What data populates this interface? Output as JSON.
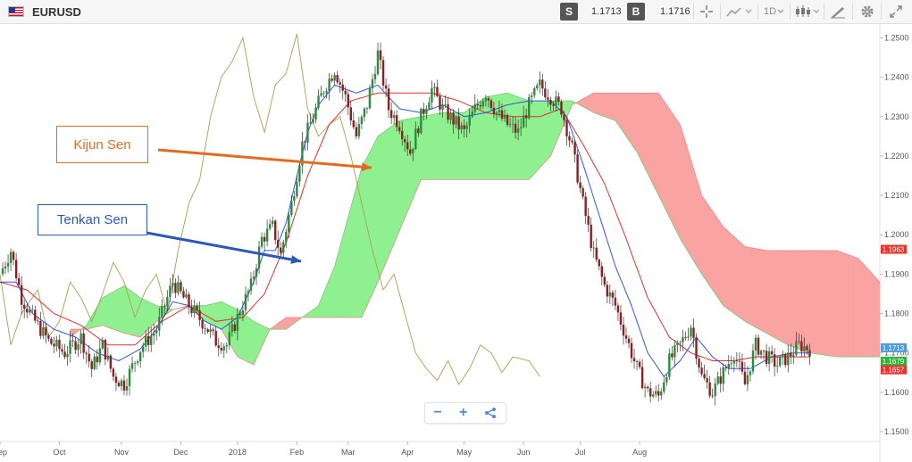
{
  "toolbar": {
    "symbol": "EURUSD",
    "sell_label": "S",
    "sell_price": "1.1713",
    "buy_label": "B",
    "buy_price": "1.1716",
    "timeframe": "1D",
    "icons": [
      "crosshair-icon",
      "chart-type-icon",
      "candles-icon",
      "draw-icon",
      "gear-icon",
      "expand-icon"
    ]
  },
  "zoom": {
    "minus": "−",
    "plus": "+",
    "share_icon": "share-icon"
  },
  "annotations": {
    "kijun_label": "Kijun Sen",
    "tenkan_label": "Tenkan Sen"
  },
  "colors": {
    "kijun": "#e06d1f",
    "tenkan": "#2b59b5",
    "cloud_bull": "#8ff08f",
    "cloud_bear": "#f9a3a3",
    "candle_up": "#2e8b3e",
    "candle_down": "#8c1f1f",
    "chikou": "#a9a050",
    "kijun_line": "#e0302a",
    "tenkan_line": "#3355dd"
  },
  "chart_data": {
    "type": "candlestick-ichimoku",
    "x_ticks": [
      "Sep",
      "Oct",
      "Nov",
      "Dec",
      "2018",
      "Feb",
      "Mar",
      "Apr",
      "May",
      "Jun",
      "Jul",
      "Aug"
    ],
    "y_ticks": [
      "1.2500",
      "1.2400",
      "1.2300",
      "1.2200",
      "1.2100",
      "1.2000",
      "1.1900",
      "1.1800",
      "1.1700",
      "1.1600",
      "1.1500"
    ],
    "ylim": [
      1.1475,
      1.2535
    ],
    "price_tags": [
      {
        "value": 1.1963,
        "text": "1.1963",
        "color": "#e8322a"
      },
      {
        "value": 1.1713,
        "text": "1.1713",
        "color": "#4f9ad8"
      },
      {
        "value": 1.1679,
        "text": "1.1679",
        "color": "#2fb33a"
      },
      {
        "value": 1.1657,
        "text": "1.1657",
        "color": "#e8322a"
      }
    ],
    "close_anchors": [
      [
        0,
        1.19
      ],
      [
        4,
        1.196
      ],
      [
        8,
        1.184
      ],
      [
        12,
        1.179
      ],
      [
        18,
        1.173
      ],
      [
        24,
        1.17
      ],
      [
        30,
        1.174
      ],
      [
        34,
        1.166
      ],
      [
        38,
        1.172
      ],
      [
        42,
        1.164
      ],
      [
        46,
        1.162
      ],
      [
        52,
        1.171
      ],
      [
        58,
        1.176
      ],
      [
        64,
        1.188
      ],
      [
        70,
        1.182
      ],
      [
        76,
        1.177
      ],
      [
        80,
        1.173
      ],
      [
        84,
        1.172
      ],
      [
        88,
        1.179
      ],
      [
        93,
        1.187
      ],
      [
        97,
        1.199
      ],
      [
        101,
        1.202
      ],
      [
        104,
        1.195
      ],
      [
        108,
        1.208
      ],
      [
        112,
        1.223
      ],
      [
        116,
        1.23
      ],
      [
        120,
        1.237
      ],
      [
        124,
        1.242
      ],
      [
        128,
        1.235
      ],
      [
        132,
        1.225
      ],
      [
        136,
        1.233
      ],
      [
        140,
        1.246
      ],
      [
        144,
        1.232
      ],
      [
        148,
        1.228
      ],
      [
        152,
        1.221
      ],
      [
        156,
        1.23
      ],
      [
        160,
        1.237
      ],
      [
        164,
        1.232
      ],
      [
        168,
        1.229
      ],
      [
        172,
        1.226
      ],
      [
        176,
        1.232
      ],
      [
        180,
        1.236
      ],
      [
        184,
        1.231
      ],
      [
        188,
        1.228
      ],
      [
        192,
        1.226
      ],
      [
        196,
        1.233
      ],
      [
        200,
        1.238
      ],
      [
        204,
        1.235
      ],
      [
        208,
        1.232
      ],
      [
        212,
        1.222
      ],
      [
        216,
        1.208
      ],
      [
        220,
        1.195
      ],
      [
        224,
        1.187
      ],
      [
        228,
        1.182
      ],
      [
        232,
        1.174
      ],
      [
        236,
        1.166
      ],
      [
        240,
        1.16
      ],
      [
        244,
        1.159
      ],
      [
        248,
        1.168
      ],
      [
        252,
        1.172
      ],
      [
        256,
        1.177
      ],
      [
        260,
        1.164
      ],
      [
        264,
        1.16
      ],
      [
        268,
        1.165
      ],
      [
        272,
        1.17
      ],
      [
        276,
        1.162
      ],
      [
        280,
        1.172
      ],
      [
        284,
        1.169
      ],
      [
        288,
        1.167
      ],
      [
        292,
        1.169
      ],
      [
        296,
        1.172
      ],
      [
        300,
        1.171
      ]
    ],
    "tenkan_anchors": [
      [
        0,
        1.188
      ],
      [
        6,
        1.188
      ],
      [
        12,
        1.18
      ],
      [
        20,
        1.176
      ],
      [
        28,
        1.174
      ],
      [
        36,
        1.17
      ],
      [
        44,
        1.168
      ],
      [
        52,
        1.171
      ],
      [
        58,
        1.176
      ],
      [
        64,
        1.183
      ],
      [
        70,
        1.182
      ],
      [
        76,
        1.178
      ],
      [
        82,
        1.176
      ],
      [
        88,
        1.179
      ],
      [
        94,
        1.188
      ],
      [
        98,
        1.196
      ],
      [
        102,
        1.196
      ],
      [
        106,
        1.203
      ],
      [
        110,
        1.215
      ],
      [
        114,
        1.226
      ],
      [
        118,
        1.233
      ],
      [
        124,
        1.238
      ],
      [
        132,
        1.236
      ],
      [
        140,
        1.238
      ],
      [
        148,
        1.232
      ],
      [
        156,
        1.231
      ],
      [
        164,
        1.233
      ],
      [
        172,
        1.23
      ],
      [
        180,
        1.231
      ],
      [
        188,
        1.233
      ],
      [
        196,
        1.234
      ],
      [
        204,
        1.234
      ],
      [
        210,
        1.23
      ],
      [
        216,
        1.218
      ],
      [
        222,
        1.205
      ],
      [
        228,
        1.192
      ],
      [
        234,
        1.182
      ],
      [
        240,
        1.17
      ],
      [
        246,
        1.164
      ],
      [
        252,
        1.168
      ],
      [
        258,
        1.174
      ],
      [
        264,
        1.169
      ],
      [
        270,
        1.166
      ],
      [
        278,
        1.166
      ],
      [
        286,
        1.169
      ],
      [
        294,
        1.17
      ],
      [
        300,
        1.17
      ]
    ],
    "kijun_anchors": [
      [
        0,
        1.188
      ],
      [
        10,
        1.186
      ],
      [
        20,
        1.18
      ],
      [
        30,
        1.177
      ],
      [
        40,
        1.172
      ],
      [
        50,
        1.172
      ],
      [
        60,
        1.178
      ],
      [
        70,
        1.182
      ],
      [
        80,
        1.178
      ],
      [
        90,
        1.179
      ],
      [
        98,
        1.185
      ],
      [
        106,
        1.198
      ],
      [
        114,
        1.215
      ],
      [
        122,
        1.228
      ],
      [
        130,
        1.234
      ],
      [
        140,
        1.236
      ],
      [
        150,
        1.236
      ],
      [
        160,
        1.236
      ],
      [
        170,
        1.234
      ],
      [
        180,
        1.231
      ],
      [
        190,
        1.23
      ],
      [
        200,
        1.23
      ],
      [
        208,
        1.232
      ],
      [
        216,
        1.223
      ],
      [
        224,
        1.213
      ],
      [
        232,
        1.199
      ],
      [
        240,
        1.184
      ],
      [
        248,
        1.174
      ],
      [
        256,
        1.17
      ],
      [
        264,
        1.168
      ],
      [
        272,
        1.168
      ],
      [
        280,
        1.169
      ],
      [
        290,
        1.169
      ],
      [
        300,
        1.169
      ]
    ],
    "cloud_span_a": [
      [
        26,
        1.174
      ],
      [
        32,
        1.177
      ],
      [
        38,
        1.184
      ],
      [
        46,
        1.187
      ],
      [
        52,
        1.184
      ],
      [
        58,
        1.182
      ],
      [
        64,
        1.181
      ],
      [
        70,
        1.182
      ],
      [
        76,
        1.182
      ],
      [
        82,
        1.183
      ],
      [
        88,
        1.181
      ],
      [
        94,
        1.178
      ],
      [
        100,
        1.176
      ],
      [
        106,
        1.176
      ],
      [
        112,
        1.179
      ],
      [
        118,
        1.182
      ],
      [
        124,
        1.192
      ],
      [
        130,
        1.207
      ],
      [
        134,
        1.217
      ],
      [
        140,
        1.225
      ],
      [
        148,
        1.229
      ],
      [
        156,
        1.23
      ],
      [
        164,
        1.231
      ],
      [
        172,
        1.231
      ],
      [
        180,
        1.235
      ],
      [
        188,
        1.236
      ],
      [
        196,
        1.234
      ],
      [
        204,
        1.234
      ],
      [
        212,
        1.234
      ],
      [
        220,
        1.231
      ],
      [
        228,
        1.229
      ],
      [
        236,
        1.221
      ],
      [
        244,
        1.21
      ],
      [
        252,
        1.199
      ],
      [
        260,
        1.19
      ],
      [
        268,
        1.182
      ],
      [
        276,
        1.178
      ],
      [
        284,
        1.175
      ],
      [
        292,
        1.172
      ],
      [
        300,
        1.17
      ],
      [
        310,
        1.169
      ],
      [
        318,
        1.169
      ],
      [
        326,
        1.169
      ]
    ],
    "cloud_span_b": [
      [
        26,
        1.176
      ],
      [
        32,
        1.176
      ],
      [
        38,
        1.177
      ],
      [
        46,
        1.175
      ],
      [
        52,
        1.174
      ],
      [
        58,
        1.178
      ],
      [
        64,
        1.181
      ],
      [
        70,
        1.182
      ],
      [
        76,
        1.178
      ],
      [
        82,
        1.176
      ],
      [
        88,
        1.169
      ],
      [
        94,
        1.167
      ],
      [
        100,
        1.176
      ],
      [
        106,
        1.179
      ],
      [
        112,
        1.179
      ],
      [
        118,
        1.179
      ],
      [
        124,
        1.179
      ],
      [
        130,
        1.179
      ],
      [
        134,
        1.179
      ],
      [
        140,
        1.188
      ],
      [
        148,
        1.201
      ],
      [
        156,
        1.214
      ],
      [
        164,
        1.214
      ],
      [
        172,
        1.214
      ],
      [
        180,
        1.214
      ],
      [
        188,
        1.214
      ],
      [
        196,
        1.214
      ],
      [
        204,
        1.22
      ],
      [
        212,
        1.233
      ],
      [
        220,
        1.236
      ],
      [
        228,
        1.236
      ],
      [
        236,
        1.236
      ],
      [
        244,
        1.236
      ],
      [
        252,
        1.228
      ],
      [
        260,
        1.21
      ],
      [
        268,
        1.202
      ],
      [
        276,
        1.197
      ],
      [
        284,
        1.196
      ],
      [
        292,
        1.196
      ],
      [
        300,
        1.196
      ],
      [
        310,
        1.196
      ],
      [
        318,
        1.194
      ],
      [
        326,
        1.188
      ]
    ],
    "chikou_anchors": [
      [
        0,
        1.19
      ],
      [
        4,
        1.172
      ],
      [
        8,
        1.18
      ],
      [
        14,
        1.186
      ],
      [
        18,
        1.174
      ],
      [
        22,
        1.178
      ],
      [
        26,
        1.188
      ],
      [
        30,
        1.184
      ],
      [
        34,
        1.178
      ],
      [
        38,
        1.185
      ],
      [
        42,
        1.193
      ],
      [
        46,
        1.188
      ],
      [
        50,
        1.179
      ],
      [
        54,
        1.186
      ],
      [
        58,
        1.19
      ],
      [
        62,
        1.18
      ],
      [
        66,
        1.196
      ],
      [
        70,
        1.208
      ],
      [
        74,
        1.214
      ],
      [
        78,
        1.23
      ],
      [
        82,
        1.24
      ],
      [
        86,
        1.244
      ],
      [
        90,
        1.25
      ],
      [
        94,
        1.235
      ],
      [
        98,
        1.226
      ],
      [
        102,
        1.238
      ],
      [
        106,
        1.241
      ],
      [
        110,
        1.251
      ],
      [
        114,
        1.232
      ],
      [
        118,
        1.225
      ],
      [
        122,
        1.228
      ],
      [
        126,
        1.23
      ],
      [
        130,
        1.22
      ],
      [
        134,
        1.208
      ],
      [
        138,
        1.196
      ],
      [
        142,
        1.186
      ],
      [
        146,
        1.19
      ],
      [
        150,
        1.18
      ],
      [
        154,
        1.17
      ],
      [
        158,
        1.166
      ],
      [
        162,
        1.163
      ],
      [
        166,
        1.168
      ],
      [
        170,
        1.162
      ],
      [
        174,
        1.166
      ],
      [
        178,
        1.172
      ],
      [
        182,
        1.17
      ],
      [
        186,
        1.165
      ],
      [
        190,
        1.169
      ],
      [
        196,
        1.168
      ],
      [
        200,
        1.164
      ]
    ]
  }
}
